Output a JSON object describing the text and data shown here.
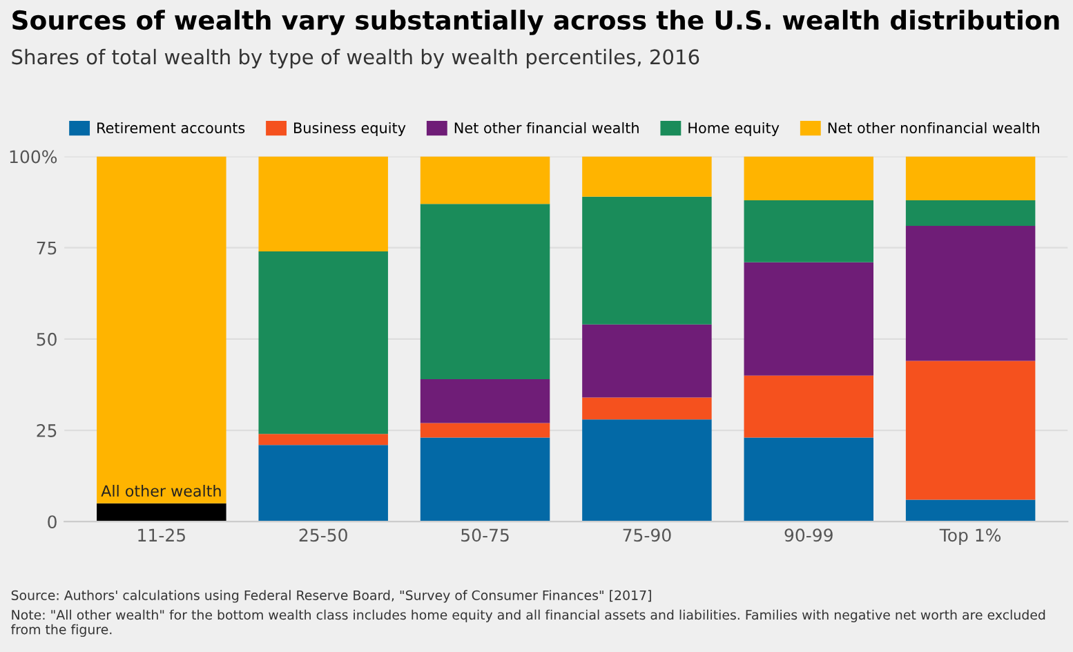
{
  "chart_data": {
    "type": "bar",
    "stacked": true,
    "title": "Sources of wealth vary substantially across the U.S. wealth distribution",
    "subtitle": "Shares of total wealth by type of wealth by wealth percentiles, 2016",
    "categories": [
      "11-25",
      "25-50",
      "50-75",
      "75-90",
      "90-99",
      "Top 1%"
    ],
    "series": [
      {
        "name": "All other wealth",
        "color": "#000000",
        "values": [
          5,
          null,
          null,
          null,
          null,
          null
        ]
      },
      {
        "name": "Retirement accounts",
        "color": "#0369a6",
        "values": [
          null,
          21,
          23,
          28,
          23,
          6
        ]
      },
      {
        "name": "Business equity",
        "color": "#f5511e",
        "values": [
          null,
          3,
          4,
          6,
          17,
          38
        ]
      },
      {
        "name": "Net other financial wealth",
        "color": "#6f1d77",
        "values": [
          null,
          null,
          12,
          20,
          31,
          37
        ]
      },
      {
        "name": "Home equity",
        "color": "#1a8c5a",
        "values": [
          null,
          50,
          48,
          35,
          17,
          7
        ]
      },
      {
        "name": "Net other nonfinancial wealth",
        "color": "#ffb400",
        "values": [
          95,
          26,
          13,
          11,
          12,
          12
        ]
      }
    ],
    "ylim": [
      0,
      100
    ],
    "yticks": [
      0,
      25,
      50,
      75,
      {
        "value": 100,
        "label": "100%"
      }
    ],
    "grid": "y",
    "legend": "top",
    "annotations": [
      "Source: Authors' calculations using Federal Reserve Board, \"Survey of Consumer Finances\" [2017]",
      "Note: \"All other wealth\" for the bottom wealth class includes home equity and all financial assets and liabilities. Families with negative net worth are excluded from the figure."
    ]
  }
}
